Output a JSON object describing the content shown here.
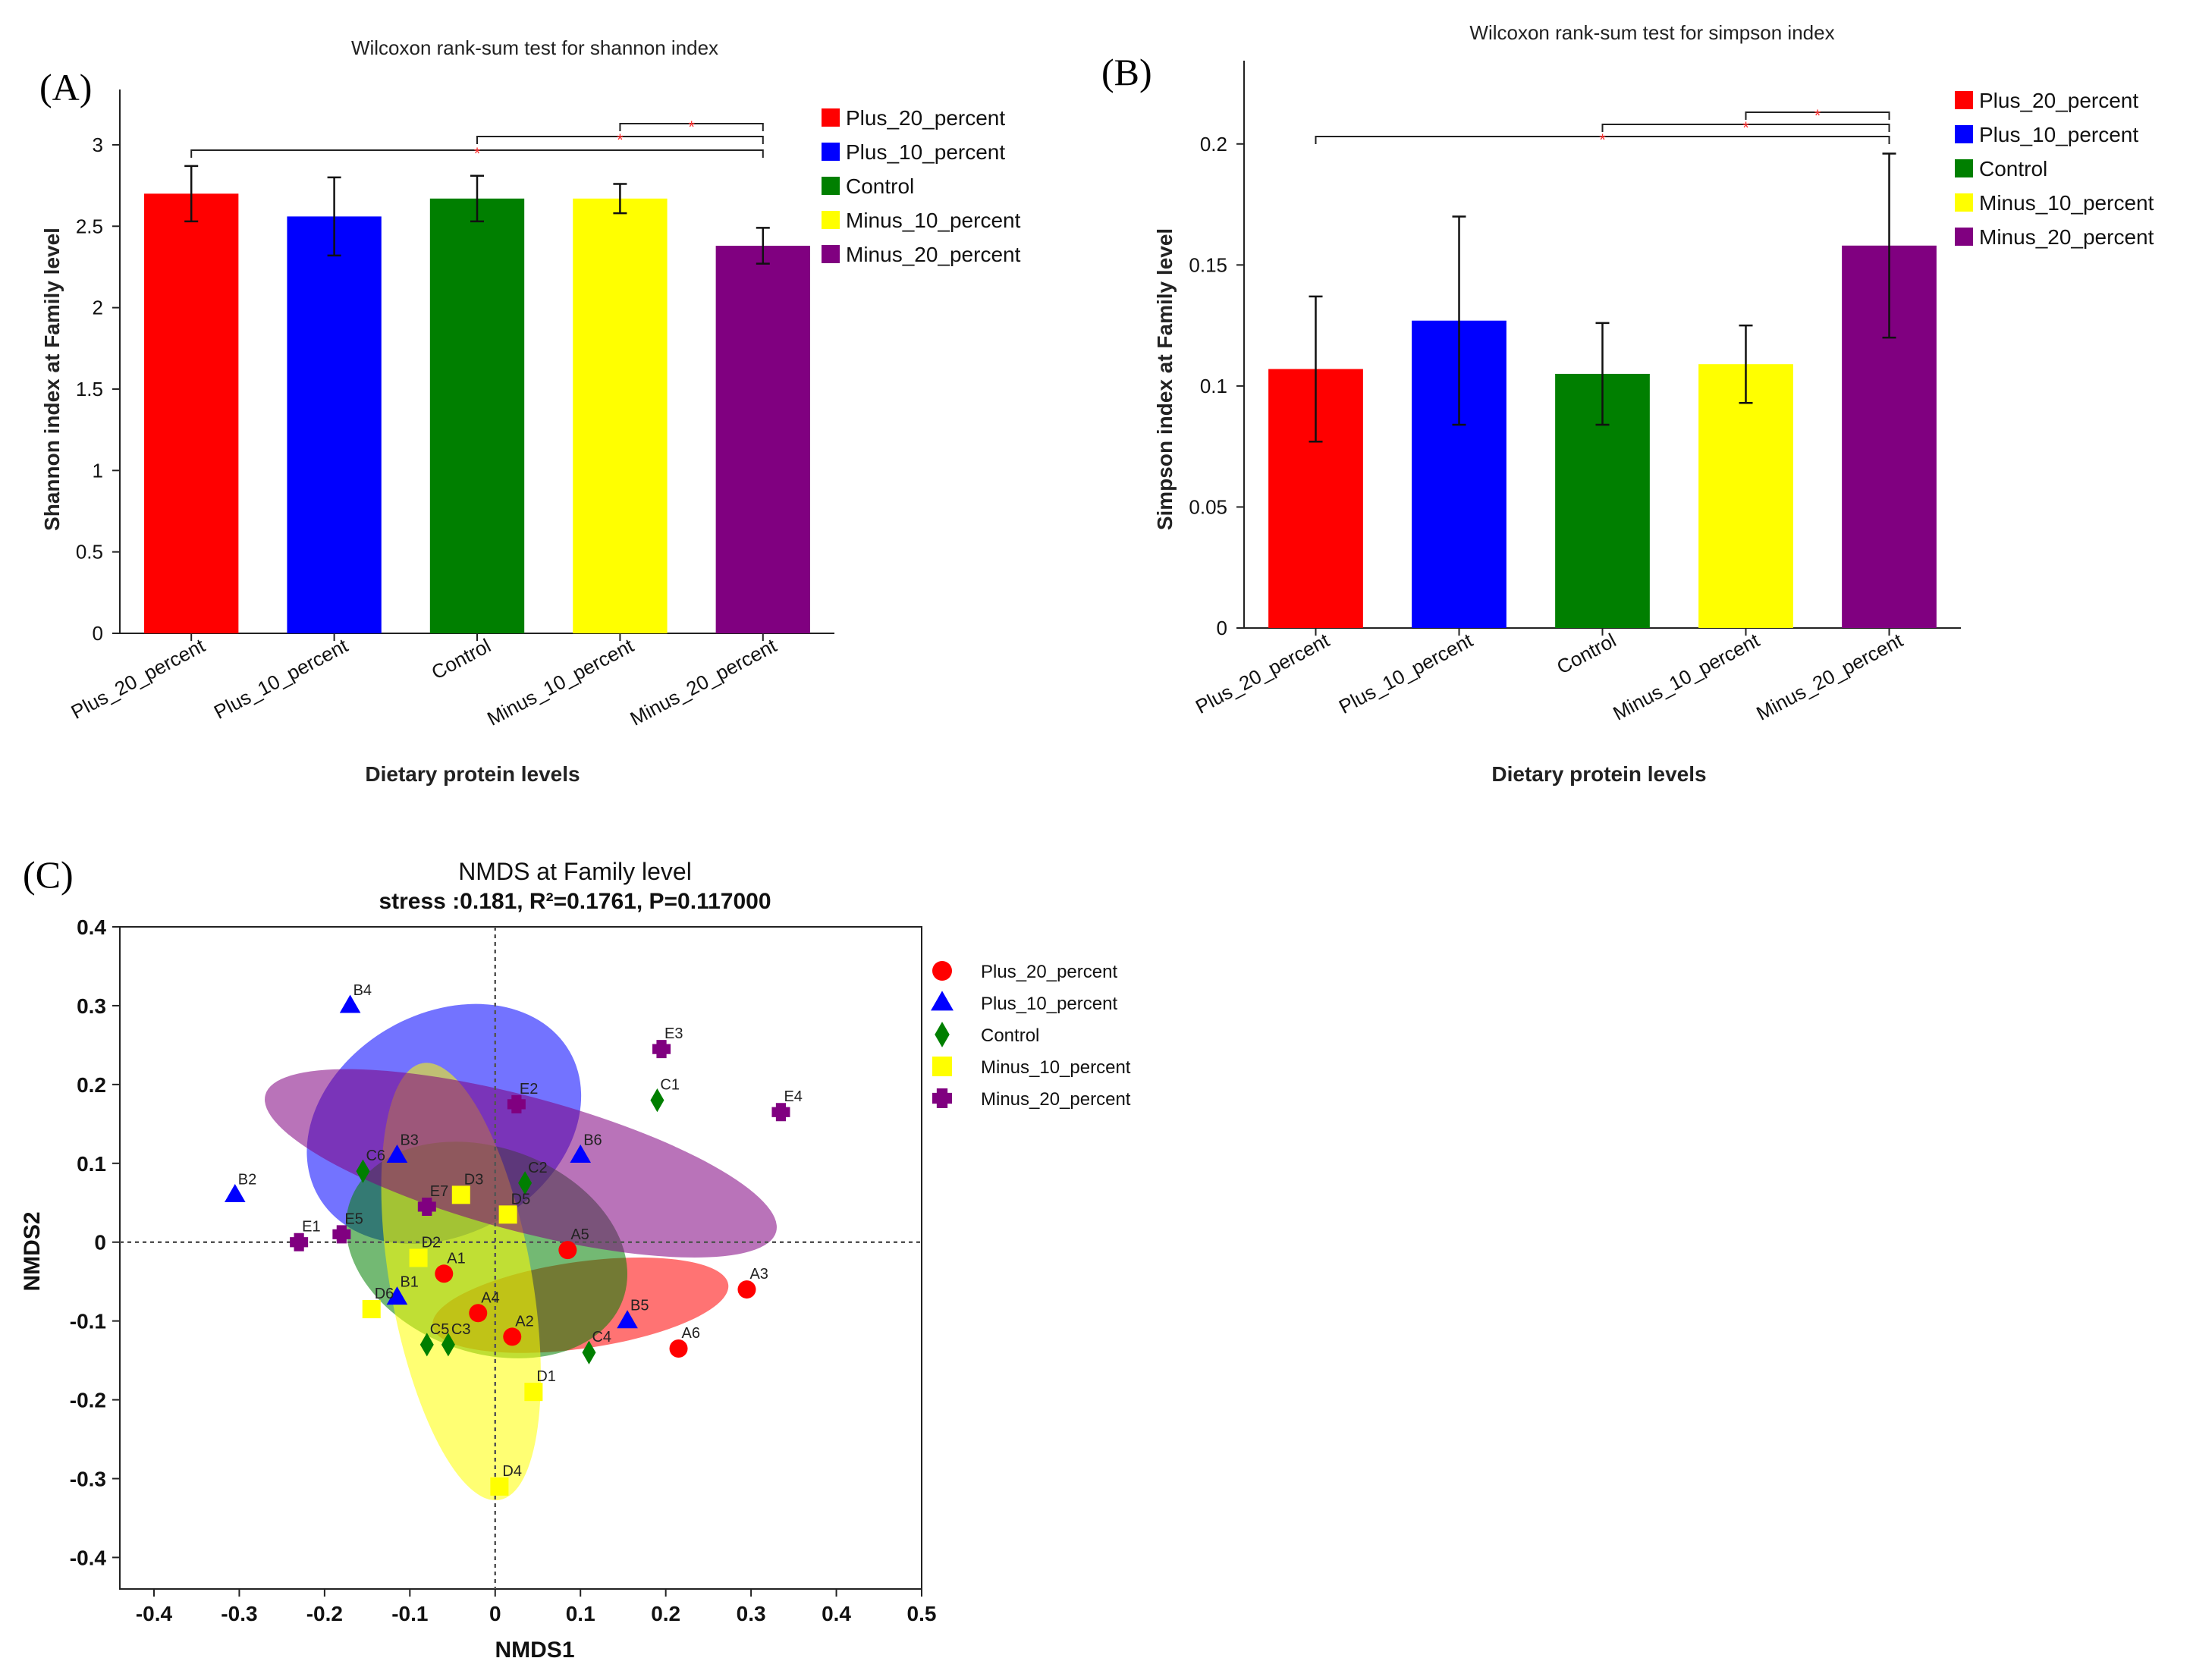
{
  "group_colors": {
    "Plus_20_percent": "#ff0000",
    "Plus_10_percent": "#0000ff",
    "Control": "#007f00",
    "Minus_10_percent": "#ffff00",
    "Minus_20_percent": "#800080"
  },
  "chart_data": [
    {
      "panel": "(A)",
      "type": "bar",
      "title": "Wilcoxon rank-sum test for shannon index",
      "xlabel": "Dietary protein levels",
      "ylabel": "Shannon index at Family level",
      "ylim": [
        0,
        3.2
      ],
      "yticks": [
        0,
        0.5,
        1,
        1.5,
        2,
        2.5,
        3
      ],
      "tick_labels": [
        "0",
        "0.5",
        "1",
        "1.5",
        "2",
        "2.5",
        "3"
      ],
      "categories": [
        "Plus_20_percent",
        "Plus_10_percent",
        "Control",
        "Minus_10_percent",
        "Minus_20_percent"
      ],
      "values": [
        2.7,
        2.56,
        2.67,
        2.67,
        2.38
      ],
      "errors": [
        0.17,
        0.24,
        0.14,
        0.09,
        0.11
      ],
      "colors": [
        "#ff0000",
        "#0000ff",
        "#007f00",
        "#ffff00",
        "#800080"
      ],
      "significance": [
        {
          "from": 0,
          "to": 4,
          "label": "*"
        },
        {
          "from": 2,
          "to": 4,
          "label": "*"
        },
        {
          "from": 3,
          "to": 4,
          "label": "*"
        }
      ],
      "legend": [
        "Plus_20_percent",
        "Plus_10_percent",
        "Control",
        "Minus_10_percent",
        "Minus_20_percent"
      ]
    },
    {
      "panel": "(B)",
      "type": "bar",
      "title": "Wilcoxon rank-sum test for simpson index",
      "xlabel": "Dietary protein levels",
      "ylabel": "Simpson index at Family level",
      "ylim": [
        0,
        0.225
      ],
      "yticks": [
        0,
        0.05,
        0.1,
        0.15,
        0.2
      ],
      "tick_labels": [
        "0",
        "0.05",
        "0.1",
        "0.15",
        "0.2"
      ],
      "categories": [
        "Plus_20_percent",
        "Plus_10_percent",
        "Control",
        "Minus_10_percent",
        "Minus_20_percent"
      ],
      "values": [
        0.107,
        0.127,
        0.105,
        0.109,
        0.158
      ],
      "errors": [
        0.03,
        0.043,
        0.021,
        0.016,
        0.038
      ],
      "colors": [
        "#ff0000",
        "#0000ff",
        "#007f00",
        "#ffff00",
        "#800080"
      ],
      "significance": [
        {
          "from": 0,
          "to": 4,
          "label": "*"
        },
        {
          "from": 2,
          "to": 4,
          "label": "*"
        },
        {
          "from": 3,
          "to": 4,
          "label": "*"
        }
      ],
      "legend": [
        "Plus_20_percent",
        "Plus_10_percent",
        "Control",
        "Minus_10_percent",
        "Minus_20_percent"
      ]
    },
    {
      "panel": "(C)",
      "type": "scatter",
      "title": "NMDS at Family level",
      "subtitle": "stress :0.181, R²=0.1761, P=0.117000",
      "xlabel": "NMDS1",
      "ylabel": "NMDS2",
      "xlim": [
        -0.44,
        0.5
      ],
      "ylim": [
        -0.44,
        0.4
      ],
      "xticks": [
        -0.4,
        -0.3,
        -0.2,
        -0.1,
        0,
        0.1,
        0.2,
        0.3,
        0.4,
        0.5
      ],
      "xtick_labels": [
        "-0.4",
        "-0.3",
        "-0.2",
        "-0.1",
        "0",
        "0.1",
        "0.2",
        "0.3",
        "0.4",
        "0.5"
      ],
      "yticks": [
        -0.4,
        -0.3,
        -0.2,
        -0.1,
        0,
        0.1,
        0.2,
        0.3,
        0.4
      ],
      "ytick_labels": [
        "-0.4",
        "-0.3",
        "-0.2",
        "-0.1",
        "0",
        "0.1",
        "0.2",
        "0.3",
        "0.4"
      ],
      "legend": [
        "Plus_20_percent",
        "Plus_10_percent",
        "Control",
        "Minus_10_percent",
        "Minus_20_percent"
      ],
      "series": [
        {
          "name": "Plus_20_percent",
          "marker": "circle",
          "color": "#ff0000",
          "ellipse": {
            "center": [
              0.1,
              -0.08
            ],
            "radii": [
              0.175,
              0.055
            ],
            "angle": -8
          },
          "points": [
            {
              "label": "A1",
              "x": -0.06,
              "y": -0.04
            },
            {
              "label": "A2",
              "x": 0.02,
              "y": -0.12
            },
            {
              "label": "A3",
              "x": 0.295,
              "y": -0.06
            },
            {
              "label": "A4",
              "x": -0.02,
              "y": -0.09
            },
            {
              "label": "A5",
              "x": 0.085,
              "y": -0.01
            },
            {
              "label": "A6",
              "x": 0.215,
              "y": -0.135
            }
          ]
        },
        {
          "name": "Plus_10_percent",
          "marker": "triangle",
          "color": "#0000ff",
          "ellipse": {
            "center": [
              -0.06,
              0.15
            ],
            "radii": [
              0.17,
              0.14
            ],
            "angle": -30
          },
          "points": [
            {
              "label": "B1",
              "x": -0.115,
              "y": -0.07
            },
            {
              "label": "B2",
              "x": -0.305,
              "y": 0.06
            },
            {
              "label": "B3",
              "x": -0.115,
              "y": 0.11
            },
            {
              "label": "B4",
              "x": -0.17,
              "y": 0.3
            },
            {
              "label": "B5",
              "x": 0.155,
              "y": -0.1
            },
            {
              "label": "B6",
              "x": 0.1,
              "y": 0.11
            }
          ]
        },
        {
          "name": "Control",
          "marker": "diamond",
          "color": "#007f00",
          "ellipse": {
            "center": [
              -0.01,
              -0.01
            ],
            "radii": [
              0.17,
              0.13
            ],
            "angle": 20
          },
          "points": [
            {
              "label": "C1",
              "x": 0.19,
              "y": 0.18
            },
            {
              "label": "C2",
              "x": 0.035,
              "y": 0.075
            },
            {
              "label": "C3",
              "x": -0.055,
              "y": -0.13
            },
            {
              "label": "C4",
              "x": 0.11,
              "y": -0.14
            },
            {
              "label": "C5",
              "x": -0.08,
              "y": -0.13
            },
            {
              "label": "C6",
              "x": -0.155,
              "y": 0.09
            }
          ]
        },
        {
          "name": "Minus_10_percent",
          "marker": "square",
          "color": "#ffff00",
          "ellipse": {
            "center": [
              -0.04,
              -0.05
            ],
            "radii": [
              0.26,
              0.09
            ],
            "angle": 80
          },
          "points": [
            {
              "label": "D1",
              "x": 0.045,
              "y": -0.19
            },
            {
              "label": "D2",
              "x": -0.09,
              "y": -0.02
            },
            {
              "label": "D3",
              "x": -0.04,
              "y": 0.06
            },
            {
              "label": "D4",
              "x": 0.005,
              "y": -0.31
            },
            {
              "label": "D5",
              "x": 0.015,
              "y": 0.035
            },
            {
              "label": "D6",
              "x": -0.145,
              "y": -0.085
            }
          ]
        },
        {
          "name": "Minus_20_percent",
          "marker": "plus",
          "color": "#800080",
          "ellipse": {
            "center": [
              0.03,
              0.1
            ],
            "radii": [
              0.31,
              0.085
            ],
            "angle": 15
          },
          "points": [
            {
              "label": "E1",
              "x": -0.23,
              "y": 0.0
            },
            {
              "label": "E2",
              "x": 0.025,
              "y": 0.175
            },
            {
              "label": "E3",
              "x": 0.195,
              "y": 0.245
            },
            {
              "label": "E4",
              "x": 0.335,
              "y": 0.165
            },
            {
              "label": "E5",
              "x": -0.18,
              "y": 0.01
            },
            {
              "label": "E7",
              "x": -0.08,
              "y": 0.045
            }
          ]
        }
      ]
    }
  ]
}
